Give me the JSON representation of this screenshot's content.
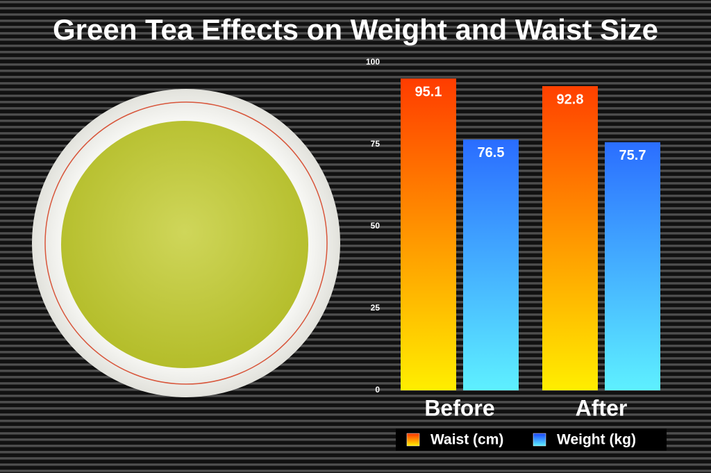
{
  "chart_data": {
    "type": "bar",
    "title": "Green Tea Effects on Weight and Waist Size",
    "categories": [
      "Before",
      "After"
    ],
    "series": [
      {
        "name": "Waist (cm)",
        "color": "#ff3300",
        "values": [
          95.1,
          92.8
        ]
      },
      {
        "name": "Weight (kg)",
        "color": "#1a44ff",
        "values": [
          76.5,
          75.7
        ]
      }
    ],
    "ylim": [
      0,
      100
    ],
    "yticks": [
      0,
      25,
      50,
      75,
      100
    ],
    "grid": false
  }
}
